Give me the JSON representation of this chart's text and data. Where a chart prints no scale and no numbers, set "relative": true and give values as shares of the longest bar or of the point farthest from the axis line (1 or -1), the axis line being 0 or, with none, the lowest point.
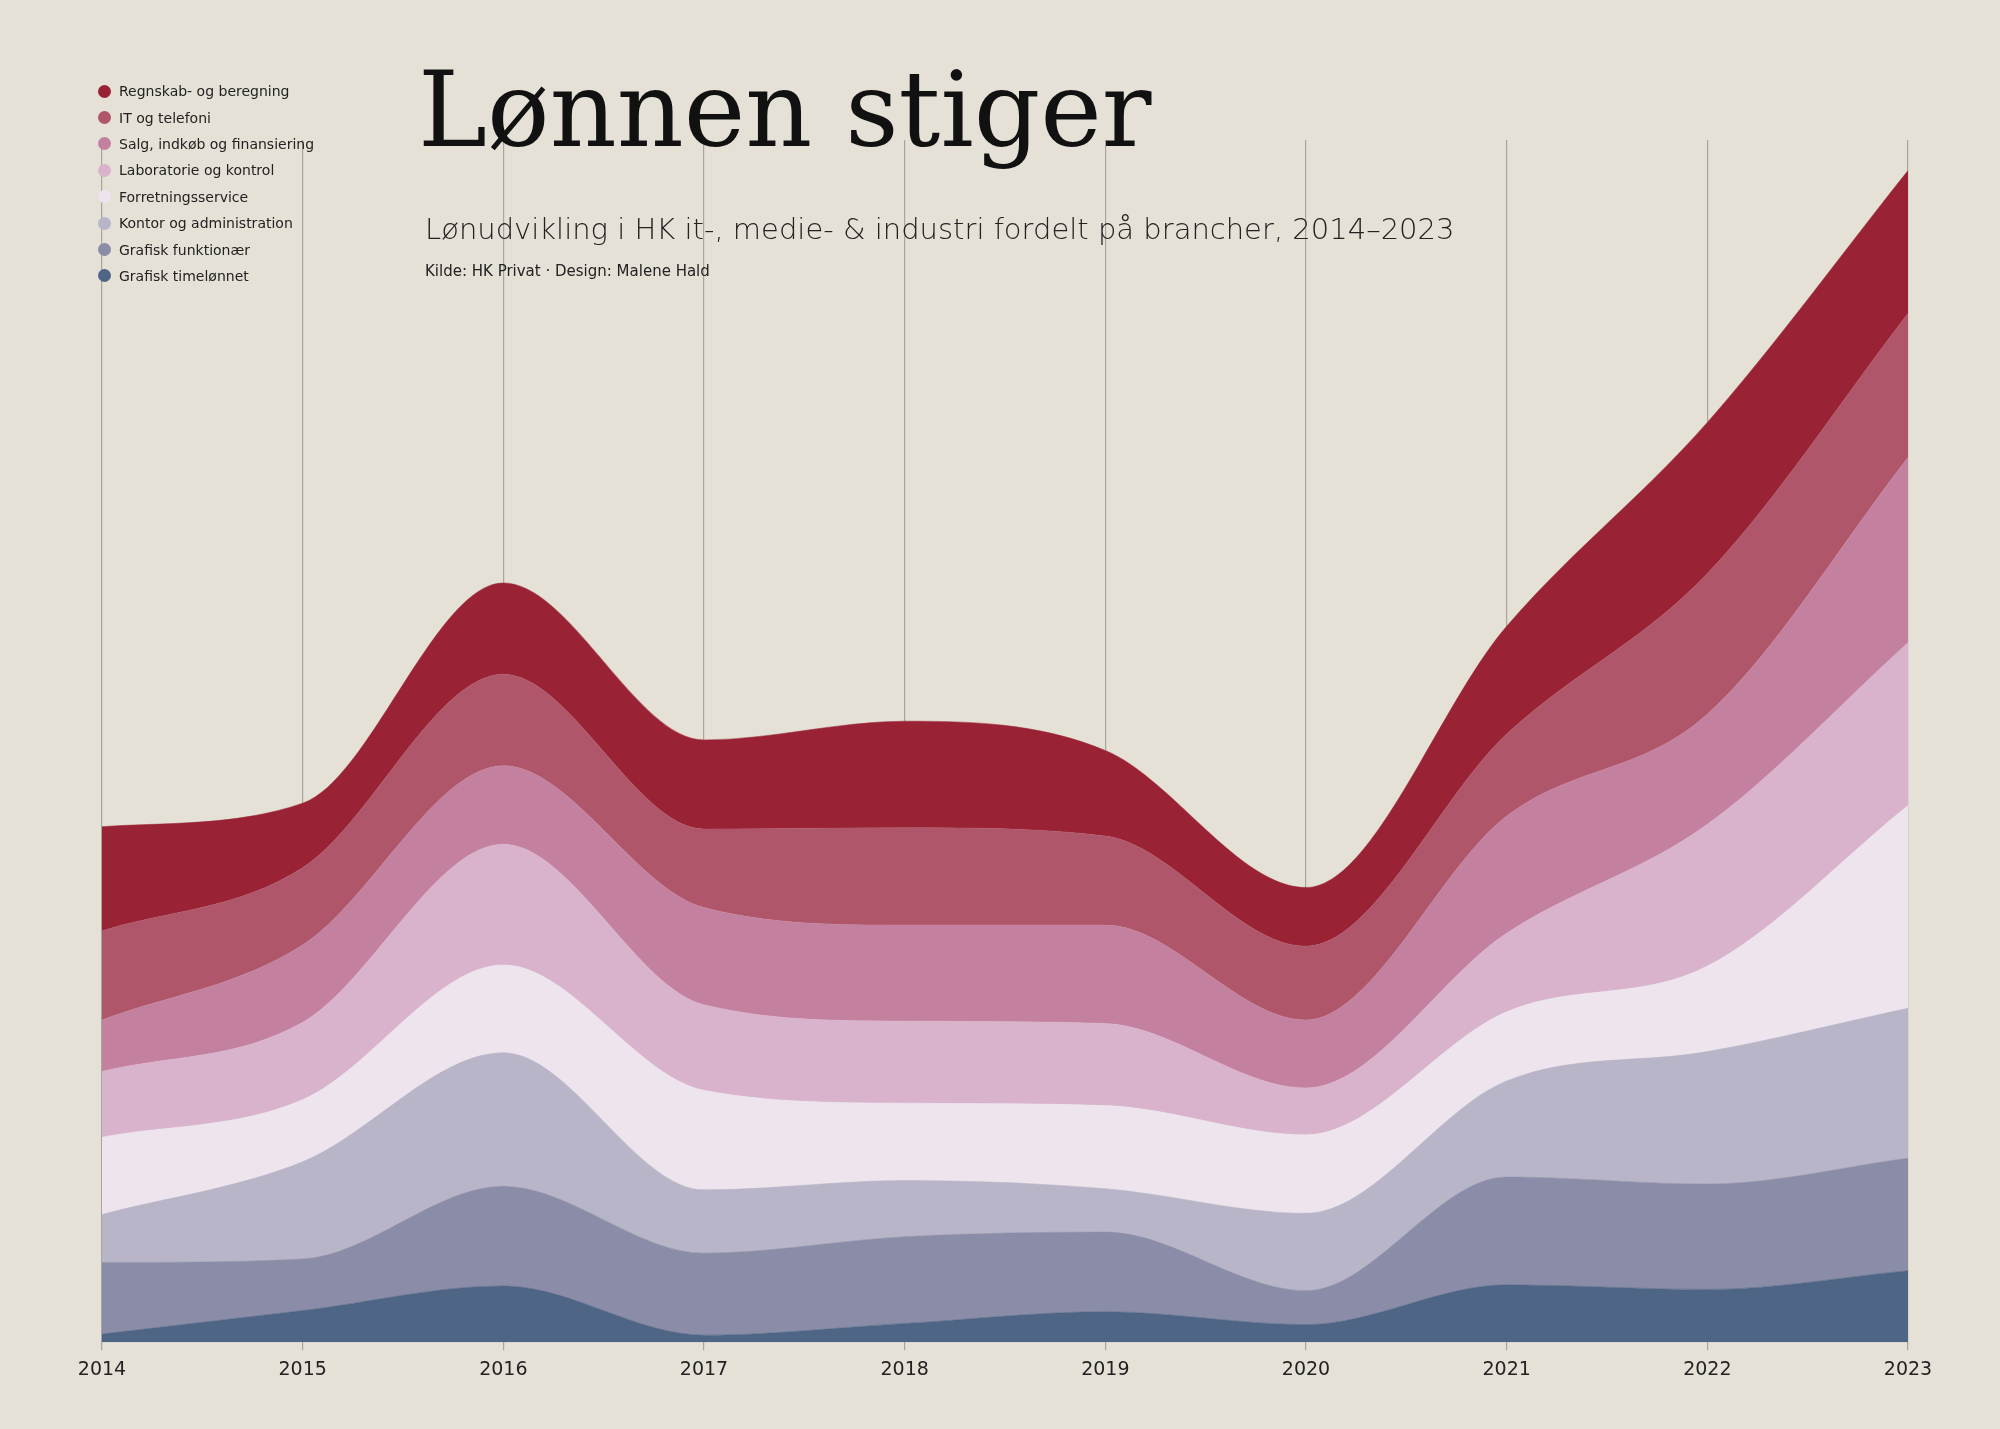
{
  "chart_data": {
    "type": "area",
    "title": "Lønnen stiger",
    "subtitle": "Lønudvikling i HK it-, medie- & industri fordelt på brancher, 2014–2023",
    "annotations": [
      "Kilde: HK Privat · Design: Malene Hald"
    ],
    "stacked": true,
    "relative": true,
    "grid": "x",
    "legend": "top left",
    "categories": [
      "2014",
      "2015",
      "2016",
      "2017",
      "2018",
      "2019",
      "2020",
      "2021",
      "2022",
      "2023"
    ],
    "series": [
      {
        "name": "Grafisk timelønnet",
        "color": "#4f6585",
        "values": [
          0.007,
          0.027,
          0.048,
          0.006,
          0.016,
          0.026,
          0.015,
          0.049,
          0.045,
          0.061
        ]
      },
      {
        "name": "Grafisk funktionær",
        "color": "#8a8ca8",
        "values": [
          0.061,
          0.044,
          0.085,
          0.07,
          0.074,
          0.068,
          0.029,
          0.092,
          0.09,
          0.096
        ]
      },
      {
        "name": "Kontor og administration",
        "color": "#b9b5c8",
        "values": [
          0.041,
          0.083,
          0.114,
          0.054,
          0.048,
          0.037,
          0.066,
          0.082,
          0.113,
          0.128
        ]
      },
      {
        "name": "Forretningsservice",
        "color": "#ede4ee",
        "values": [
          0.066,
          0.053,
          0.075,
          0.085,
          0.066,
          0.071,
          0.067,
          0.059,
          0.073,
          0.173
        ]
      },
      {
        "name": "Laboratorie og kontrol",
        "color": "#d9b3cc",
        "values": [
          0.056,
          0.066,
          0.103,
          0.073,
          0.07,
          0.07,
          0.04,
          0.067,
          0.121,
          0.139
        ]
      },
      {
        "name": "Salg, indkøb og finansiering",
        "color": "#c4819f",
        "values": [
          0.044,
          0.066,
          0.067,
          0.083,
          0.082,
          0.084,
          0.058,
          0.1,
          0.094,
          0.158
        ]
      },
      {
        "name": "IT og telefoni",
        "color": "#b0566a",
        "values": [
          0.076,
          0.066,
          0.078,
          0.067,
          0.083,
          0.076,
          0.063,
          0.07,
          0.12,
          0.123
        ]
      },
      {
        "name": "Regnskab- og beregning",
        "color": "#9a2235",
        "values": [
          0.089,
          0.055,
          0.078,
          0.076,
          0.091,
          0.073,
          0.05,
          0.092,
          0.129,
          0.122
        ]
      }
    ]
  }
}
